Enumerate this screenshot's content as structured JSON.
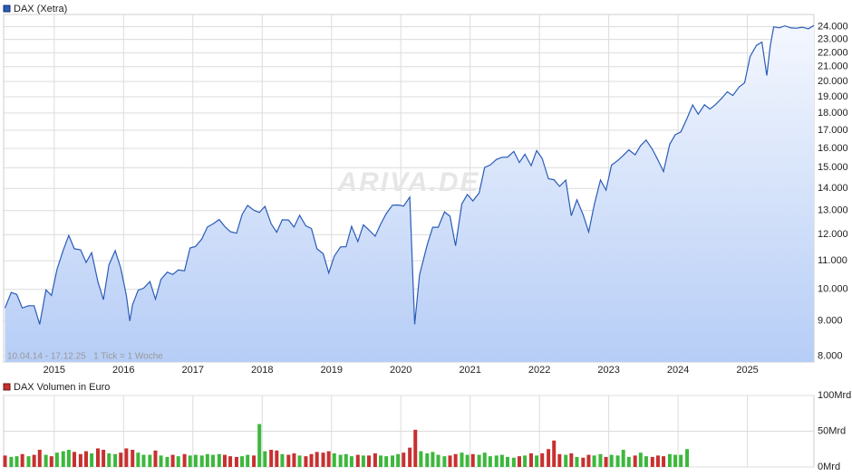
{
  "chart_data": [
    {
      "type": "line",
      "legend": "DAX (Xetra)",
      "annotation": "10.04.14 - 17.12.25   1 Tick = 1 Woche",
      "watermark": "ARIVA.DE",
      "color": "#2a5cb8",
      "log_scale": true,
      "grid": true,
      "xlim": [
        2014.27,
        2025.96
      ],
      "xticks": [
        2015,
        2016,
        2017,
        2018,
        2019,
        2020,
        2021,
        2022,
        2023,
        2024,
        2025
      ],
      "ylim": [
        7850,
        25000
      ],
      "yticks": [
        {
          "value": 8000,
          "label": "8.000"
        },
        {
          "value": 9000,
          "label": "9.000"
        },
        {
          "value": 10000,
          "label": "10.000"
        },
        {
          "value": 11000,
          "label": "11.000"
        },
        {
          "value": 12000,
          "label": "12.000"
        },
        {
          "value": 13000,
          "label": "13.000"
        },
        {
          "value": 14000,
          "label": "14.000"
        },
        {
          "value": 15000,
          "label": "15.000"
        },
        {
          "value": 16000,
          "label": "16.000"
        },
        {
          "value": 17000,
          "label": "17.000"
        },
        {
          "value": 18000,
          "label": "18.000"
        },
        {
          "value": 19000,
          "label": "19.000"
        },
        {
          "value": 20000,
          "label": "20.000"
        },
        {
          "value": 21000,
          "label": "21.000"
        },
        {
          "value": 22000,
          "label": "22.000"
        },
        {
          "value": 23000,
          "label": "23.000"
        },
        {
          "value": 24000,
          "label": "24.000"
        }
      ],
      "x": [
        2014.29,
        2014.38,
        2014.46,
        2014.54,
        2014.63,
        2014.71,
        2014.79,
        2014.88,
        2014.96,
        2015.04,
        2015.13,
        2015.21,
        2015.29,
        2015.38,
        2015.46,
        2015.54,
        2015.63,
        2015.71,
        2015.79,
        2015.88,
        2015.96,
        2016.04,
        2016.09,
        2016.13,
        2016.21,
        2016.29,
        2016.38,
        2016.46,
        2016.54,
        2016.63,
        2016.71,
        2016.79,
        2016.88,
        2016.96,
        2017.04,
        2017.13,
        2017.21,
        2017.29,
        2017.38,
        2017.46,
        2017.54,
        2017.63,
        2017.71,
        2017.79,
        2017.88,
        2017.96,
        2018.04,
        2018.13,
        2018.21,
        2018.29,
        2018.38,
        2018.46,
        2018.54,
        2018.63,
        2018.71,
        2018.79,
        2018.88,
        2018.96,
        2019.04,
        2019.13,
        2019.21,
        2019.29,
        2019.38,
        2019.46,
        2019.54,
        2019.63,
        2019.71,
        2019.79,
        2019.88,
        2019.96,
        2020.04,
        2020.13,
        2020.2,
        2020.27,
        2020.38,
        2020.46,
        2020.54,
        2020.63,
        2020.71,
        2020.79,
        2020.88,
        2020.96,
        2021.04,
        2021.13,
        2021.21,
        2021.29,
        2021.38,
        2021.46,
        2021.54,
        2021.63,
        2021.71,
        2021.79,
        2021.88,
        2021.96,
        2022.04,
        2022.13,
        2022.21,
        2022.29,
        2022.38,
        2022.46,
        2022.54,
        2022.63,
        2022.71,
        2022.79,
        2022.88,
        2022.96,
        2023.04,
        2023.13,
        2023.21,
        2023.29,
        2023.38,
        2023.46,
        2023.54,
        2023.63,
        2023.71,
        2023.79,
        2023.88,
        2023.96,
        2024.04,
        2024.13,
        2024.21,
        2024.29,
        2024.38,
        2024.46,
        2024.54,
        2024.63,
        2024.71,
        2024.79,
        2024.88,
        2024.96,
        2025.04,
        2025.13,
        2025.21,
        2025.28,
        2025.33,
        2025.38,
        2025.46,
        2025.54,
        2025.63,
        2025.71,
        2025.79,
        2025.88,
        2025.96
      ],
      "values": [
        9400,
        9900,
        9830,
        9400,
        9470,
        9470,
        8900,
        9980,
        9800,
        10690,
        11400,
        11970,
        11450,
        11410,
        10940,
        11300,
        10260,
        9660,
        10850,
        11380,
        10740,
        9800,
        9000,
        9500,
        9970,
        10040,
        10260,
        9680,
        10340,
        10590,
        10510,
        10670,
        10640,
        11480,
        11540,
        11830,
        12310,
        12440,
        12620,
        12330,
        12120,
        12060,
        12830,
        13230,
        13020,
        12920,
        13190,
        12440,
        12100,
        12610,
        12600,
        12310,
        12800,
        12360,
        12250,
        11450,
        11260,
        10560,
        11170,
        11520,
        11530,
        12340,
        11730,
        12400,
        12190,
        11940,
        12430,
        12870,
        13240,
        13250,
        13200,
        13600,
        8900,
        10500,
        11600,
        12300,
        12300,
        12950,
        12760,
        11560,
        13290,
        13720,
        13430,
        13790,
        15010,
        15140,
        15420,
        15530,
        15540,
        15840,
        15260,
        15690,
        15100,
        15880,
        15470,
        14460,
        14410,
        14100,
        14390,
        12780,
        13480,
        12830,
        12110,
        13250,
        14400,
        13920,
        15130,
        15370,
        15630,
        15920,
        15660,
        16150,
        16450,
        15950,
        15390,
        14810,
        16220,
        16750,
        16900,
        17680,
        18490,
        17930,
        18500,
        18240,
        18510,
        18910,
        19320,
        19080,
        19630,
        19910,
        21730,
        22550,
        22800,
        20400,
        22500,
        23990,
        23910,
        24070,
        23900,
        23880,
        23960,
        23840,
        24100
      ]
    },
    {
      "type": "bar",
      "legend": "DAX Volumen in Euro",
      "legend_color": "#c83030",
      "grid": true,
      "xlim": [
        2014.27,
        2025.96
      ],
      "ylim": [
        0,
        100
      ],
      "yticks": [
        {
          "value": 0,
          "label": "0Mrd"
        },
        {
          "value": 50,
          "label": "50Mrd"
        },
        {
          "value": 100,
          "label": "100Mrd"
        }
      ],
      "x": [
        2014.29,
        2014.38,
        2014.46,
        2014.54,
        2014.63,
        2014.71,
        2014.79,
        2014.88,
        2014.96,
        2015.04,
        2015.13,
        2015.21,
        2015.29,
        2015.38,
        2015.46,
        2015.54,
        2015.63,
        2015.71,
        2015.79,
        2015.88,
        2015.96,
        2016.04,
        2016.13,
        2016.21,
        2016.29,
        2016.38,
        2016.46,
        2016.54,
        2016.63,
        2016.71,
        2016.79,
        2016.88,
        2016.96,
        2017.04,
        2017.13,
        2017.21,
        2017.29,
        2017.38,
        2017.46,
        2017.54,
        2017.63,
        2017.71,
        2017.79,
        2017.88,
        2017.96,
        2018.04,
        2018.13,
        2018.21,
        2018.29,
        2018.38,
        2018.46,
        2018.54,
        2018.63,
        2018.71,
        2018.79,
        2018.88,
        2018.96,
        2019.04,
        2019.13,
        2019.21,
        2019.29,
        2019.38,
        2019.46,
        2019.54,
        2019.63,
        2019.71,
        2019.79,
        2019.88,
        2019.96,
        2020.04,
        2020.13,
        2020.21,
        2020.29,
        2020.38,
        2020.46,
        2020.54,
        2020.63,
        2020.71,
        2020.79,
        2020.88,
        2020.96,
        2021.04,
        2021.13,
        2021.21,
        2021.29,
        2021.38,
        2021.46,
        2021.54,
        2021.63,
        2021.71,
        2021.79,
        2021.88,
        2021.96,
        2022.04,
        2022.13,
        2022.21,
        2022.29,
        2022.38,
        2022.46,
        2022.54,
        2022.63,
        2022.71,
        2022.79,
        2022.88,
        2022.96,
        2023.04,
        2023.13,
        2023.21,
        2023.29,
        2023.38,
        2023.46,
        2023.54,
        2023.63,
        2023.71,
        2023.79,
        2023.88,
        2023.96,
        2024.04,
        2024.13
      ],
      "values": [
        16,
        14,
        15,
        18,
        15,
        17,
        24,
        17,
        15,
        20,
        22,
        24,
        21,
        18,
        22,
        19,
        26,
        24,
        19,
        18,
        20,
        26,
        24,
        20,
        17,
        17,
        23,
        16,
        14,
        17,
        15,
        18,
        16,
        17,
        16,
        18,
        17,
        18,
        17,
        15,
        14,
        15,
        17,
        16,
        60,
        22,
        24,
        23,
        18,
        17,
        19,
        16,
        15,
        18,
        21,
        20,
        22,
        19,
        17,
        18,
        15,
        17,
        16,
        16,
        19,
        16,
        15,
        16,
        18,
        20,
        27,
        52,
        22,
        19,
        21,
        17,
        15,
        16,
        18,
        20,
        17,
        18,
        17,
        20,
        15,
        16,
        17,
        14,
        13,
        15,
        16,
        19,
        16,
        19,
        25,
        37,
        18,
        17,
        19,
        14,
        13,
        17,
        16,
        18,
        14,
        17,
        16,
        24,
        14,
        16,
        20,
        15,
        14,
        16,
        15,
        18,
        17,
        17,
        25
      ],
      "colors": [
        "#c83030",
        "#3cb83c",
        "#3cb83c",
        "#c83030",
        "#3cb83c",
        "#c83030",
        "#c83030",
        "#3cb83c",
        "#c83030",
        "#3cb83c",
        "#3cb83c",
        "#3cb83c",
        "#c83030",
        "#c83030",
        "#c83030",
        "#3cb83c",
        "#c83030",
        "#c83030",
        "#3cb83c",
        "#3cb83c",
        "#c83030",
        "#c83030",
        "#c83030",
        "#3cb83c",
        "#3cb83c",
        "#3cb83c",
        "#c83030",
        "#3cb83c",
        "#3cb83c",
        "#c83030",
        "#3cb83c",
        "#c83030",
        "#3cb83c",
        "#3cb83c",
        "#3cb83c",
        "#3cb83c",
        "#3cb83c",
        "#3cb83c",
        "#c83030",
        "#c83030",
        "#c83030",
        "#3cb83c",
        "#3cb83c",
        "#c83030",
        "#3cb83c",
        "#3cb83c",
        "#c83030",
        "#c83030",
        "#3cb83c",
        "#c83030",
        "#c83030",
        "#3cb83c",
        "#c83030",
        "#c83030",
        "#c83030",
        "#c83030",
        "#c83030",
        "#3cb83c",
        "#3cb83c",
        "#3cb83c",
        "#3cb83c",
        "#c83030",
        "#3cb83c",
        "#c83030",
        "#c83030",
        "#3cb83c",
        "#3cb83c",
        "#3cb83c",
        "#3cb83c",
        "#c83030",
        "#c83030",
        "#c83030",
        "#3cb83c",
        "#3cb83c",
        "#3cb83c",
        "#3cb83c",
        "#3cb83c",
        "#c83030",
        "#c83030",
        "#3cb83c",
        "#3cb83c",
        "#c83030",
        "#3cb83c",
        "#3cb83c",
        "#3cb83c",
        "#3cb83c",
        "#3cb83c",
        "#3cb83c",
        "#3cb83c",
        "#c83030",
        "#3cb83c",
        "#c83030",
        "#3cb83c",
        "#c83030",
        "#c83030",
        "#c83030",
        "#c83030",
        "#3cb83c",
        "#c83030",
        "#3cb83c",
        "#c83030",
        "#c83030",
        "#3cb83c",
        "#3cb83c",
        "#c83030",
        "#3cb83c",
        "#3cb83c",
        "#3cb83c",
        "#3cb83c",
        "#c83030",
        "#3cb83c",
        "#3cb83c",
        "#c83030",
        "#c83030",
        "#c83030",
        "#3cb83c",
        "#3cb83c",
        "#3cb83c",
        "#3cb83c"
      ]
    }
  ]
}
